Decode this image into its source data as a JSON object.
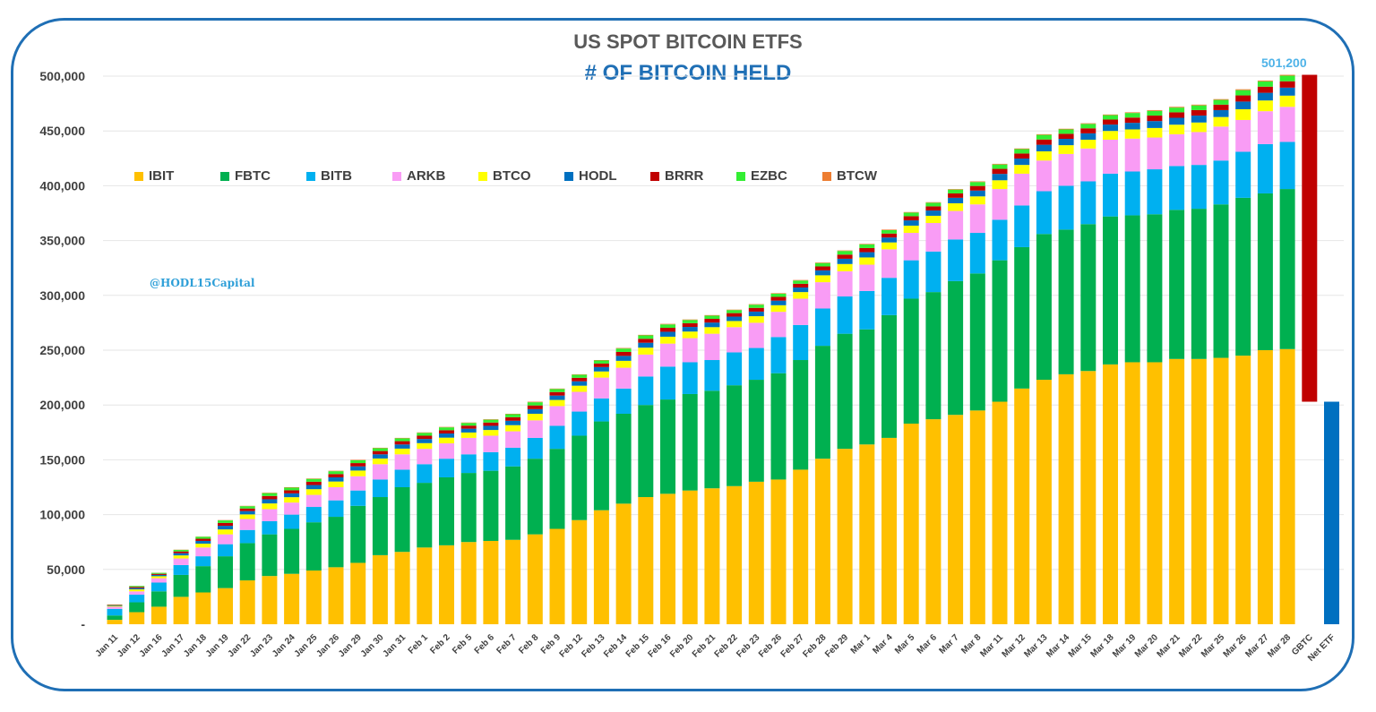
{
  "chart_data": {
    "type": "bar",
    "stacked": true,
    "title": "US SPOT BITCOIN ETFS",
    "subtitle": "# OF BITCOIN HELD",
    "watermark": "@HODL15Capital",
    "total_label": "501,200",
    "ylim": [
      0,
      500000
    ],
    "yticks": [
      "-",
      "50,000",
      "100,000",
      "150,000",
      "200,000",
      "250,000",
      "300,000",
      "350,000",
      "400,000",
      "450,000",
      "500,000"
    ],
    "grid": true,
    "legend_position": "top-left",
    "categories": [
      "Jan 11",
      "Jan 12",
      "Jan 16",
      "Jan 17",
      "Jan 18",
      "Jan 19",
      "Jan 22",
      "Jan 23",
      "Jan 24",
      "Jan 25",
      "Jan 26",
      "Jan 29",
      "Jan 30",
      "Jan 31",
      "Feb 1",
      "Feb 2",
      "Feb 5",
      "Feb 6",
      "Feb 7",
      "Feb 8",
      "Feb 9",
      "Feb 12",
      "Feb 13",
      "Feb 14",
      "Feb 15",
      "Feb 16",
      "Feb 20",
      "Feb 21",
      "Feb 22",
      "Feb 23",
      "Feb 26",
      "Feb 27",
      "Feb 28",
      "Feb 29",
      "Mar 1",
      "Mar 4",
      "Mar 5",
      "Mar 6",
      "Mar 7",
      "Mar 8",
      "Mar 11",
      "Mar 12",
      "Mar 13",
      "Mar 14",
      "Mar 15",
      "Mar 18",
      "Mar 19",
      "Mar 20",
      "Mar 21",
      "Mar 22",
      "Mar 25",
      "Mar 26",
      "Mar 27",
      "Mar 28"
    ],
    "series": [
      {
        "name": "IBIT",
        "color": "#FFC000",
        "values": [
          4000,
          11000,
          16000,
          25000,
          29000,
          33000,
          40000,
          44000,
          46000,
          49000,
          52000,
          56000,
          63000,
          66000,
          70000,
          72000,
          75000,
          76000,
          77000,
          82000,
          87000,
          95000,
          104000,
          110000,
          116000,
          119000,
          122000,
          124000,
          126000,
          130000,
          132000,
          141000,
          151000,
          160000,
          164000,
          170000,
          183000,
          187000,
          191000,
          195000,
          203000,
          215000,
          223000,
          228000,
          231000,
          237000,
          239000,
          239000,
          242000,
          242000,
          243000,
          245000,
          250000,
          251000
        ]
      },
      {
        "name": "FBTC",
        "color": "#00B050",
        "values": [
          4000,
          9000,
          14000,
          20000,
          24000,
          29000,
          34000,
          38000,
          41000,
          44000,
          46000,
          52000,
          53000,
          59000,
          59000,
          62000,
          63000,
          64000,
          67000,
          69000,
          73000,
          77000,
          81000,
          82000,
          84000,
          86000,
          88000,
          89000,
          92000,
          93000,
          97000,
          100000,
          103000,
          105000,
          105000,
          112000,
          114000,
          116000,
          122000,
          125000,
          129000,
          129000,
          133000,
          132000,
          134000,
          135000,
          134000,
          135000,
          136000,
          137000,
          140000,
          144000,
          143000,
          146000
        ]
      },
      {
        "name": "BITB",
        "color": "#00B0F0",
        "values": [
          6000,
          7000,
          8000,
          9000,
          9000,
          11000,
          12000,
          12000,
          13000,
          14000,
          15000,
          14000,
          16000,
          16000,
          17000,
          17000,
          17000,
          17000,
          17000,
          19000,
          21000,
          22000,
          21000,
          23000,
          26000,
          30000,
          29000,
          28000,
          30000,
          29000,
          33000,
          32000,
          34000,
          34000,
          35000,
          34000,
          35000,
          37000,
          38000,
          37000,
          37000,
          38000,
          39000,
          40000,
          39000,
          39000,
          40000,
          41000,
          40000,
          40000,
          40000,
          42000,
          45000,
          43000
        ]
      },
      {
        "name": "ARKB",
        "color": "#F99CF5",
        "values": [
          2000,
          3000,
          4000,
          6000,
          8000,
          9000,
          10000,
          11000,
          11000,
          11000,
          12000,
          13000,
          14000,
          14000,
          14000,
          14000,
          15000,
          15000,
          15000,
          16000,
          18000,
          18000,
          19000,
          19000,
          20000,
          21000,
          22000,
          24000,
          23000,
          23000,
          23000,
          24000,
          24000,
          23000,
          24000,
          26000,
          25000,
          26000,
          26000,
          26000,
          28000,
          29000,
          28000,
          29000,
          30000,
          31000,
          30000,
          29000,
          29000,
          30000,
          31000,
          29000,
          30000,
          32000
        ]
      },
      {
        "name": "BTCO",
        "color": "#FFFF00",
        "values": [
          700,
          1800,
          1800,
          2800,
          3500,
          4500,
          4200,
          5200,
          4900,
          5200,
          5200,
          5200,
          5200,
          5200,
          5200,
          5200,
          4900,
          5200,
          5600,
          6000,
          5600,
          5600,
          5600,
          6300,
          6300,
          6300,
          6000,
          6000,
          5600,
          6000,
          6000,
          6000,
          6300,
          6600,
          6600,
          6300,
          6600,
          6600,
          7000,
          7300,
          8000,
          8000,
          8400,
          8000,
          8000,
          8000,
          8400,
          8700,
          8700,
          8700,
          8700,
          9800,
          9800,
          10200
        ]
      },
      {
        "name": "HODL",
        "color": "#0070C0",
        "values": [
          500,
          1200,
          1200,
          2000,
          2500,
          3300,
          3000,
          3800,
          3500,
          3800,
          3800,
          3800,
          3800,
          3800,
          3800,
          3800,
          3500,
          3800,
          4000,
          4200,
          4000,
          4000,
          4000,
          4500,
          4500,
          4500,
          4200,
          4200,
          4000,
          4200,
          4200,
          4200,
          4500,
          4800,
          4800,
          4500,
          4800,
          4800,
          5000,
          5300,
          5800,
          5800,
          6000,
          5800,
          5800,
          5800,
          6000,
          6300,
          6300,
          6300,
          6300,
          7000,
          7000,
          7300
        ]
      },
      {
        "name": "BRRR",
        "color": "#C00000",
        "values": [
          400,
          1000,
          1000,
          1600,
          2000,
          2600,
          2400,
          3000,
          2800,
          3000,
          3000,
          3000,
          3000,
          3000,
          3000,
          3000,
          2800,
          3000,
          3200,
          3400,
          3200,
          3200,
          3200,
          3600,
          3600,
          3600,
          3400,
          3400,
          3200,
          3400,
          3400,
          3400,
          3600,
          3800,
          3800,
          3600,
          3800,
          3800,
          4000,
          4200,
          4600,
          4600,
          4800,
          4600,
          4600,
          4600,
          4800,
          5000,
          5000,
          5000,
          5000,
          5600,
          5600,
          5800
        ]
      },
      {
        "name": "EZBC",
        "color": "#33EE33",
        "values": [
          300,
          900,
          900,
          1400,
          1800,
          2300,
          2100,
          2600,
          2400,
          2600,
          2600,
          2600,
          2600,
          2600,
          2600,
          2600,
          2400,
          2600,
          2800,
          2900,
          2800,
          2800,
          2800,
          3100,
          3100,
          3100,
          2900,
          2900,
          2800,
          2900,
          2900,
          2900,
          3100,
          3300,
          3300,
          3100,
          3300,
          3300,
          3500,
          3600,
          4000,
          4000,
          4200,
          4000,
          4000,
          4000,
          4200,
          4300,
          4300,
          4300,
          4300,
          4800,
          4800,
          5100
        ]
      },
      {
        "name": "BTCW",
        "color": "#ED7D31",
        "values": [
          100,
          100,
          100,
          200,
          200,
          300,
          300,
          400,
          400,
          400,
          400,
          400,
          400,
          400,
          400,
          400,
          400,
          400,
          400,
          500,
          400,
          400,
          400,
          500,
          500,
          500,
          500,
          500,
          400,
          500,
          500,
          500,
          500,
          500,
          500,
          500,
          500,
          500,
          500,
          600,
          600,
          600,
          600,
          600,
          600,
          600,
          600,
          700,
          700,
          700,
          700,
          800,
          800,
          800
        ]
      }
    ],
    "waterfall": [
      {
        "label": "GBTC",
        "from": 501200,
        "to": 203000,
        "color": "#C00000"
      },
      {
        "label": "Net ETF",
        "from": 203000,
        "to": 0,
        "color": "#0070C0"
      }
    ]
  }
}
